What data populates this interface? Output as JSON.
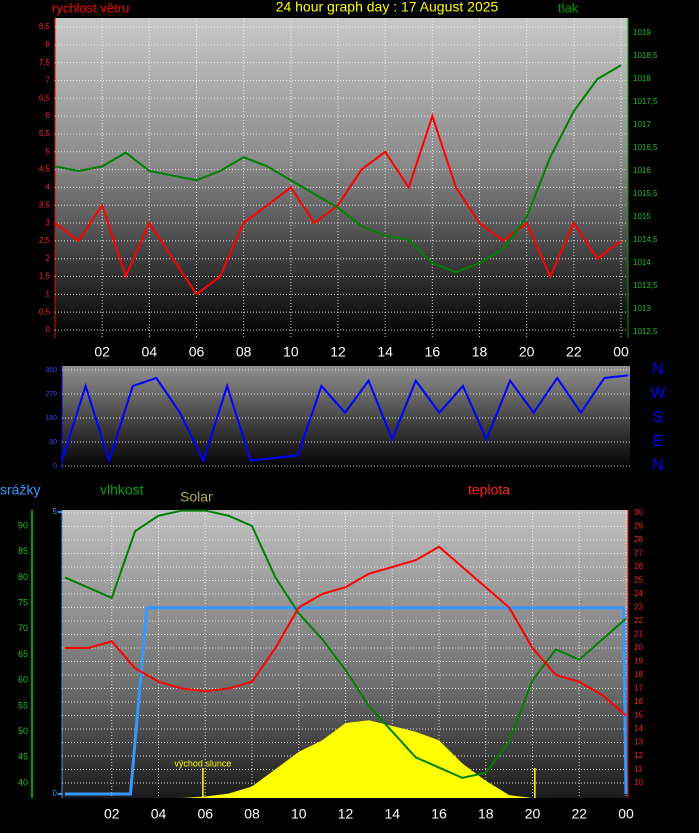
{
  "chart_data": [
    {
      "type": "line",
      "title": "24 hour graph day : 17 August 2025",
      "x": [
        0,
        1,
        2,
        3,
        4,
        5,
        6,
        7,
        8,
        9,
        10,
        11,
        12,
        13,
        14,
        15,
        16,
        17,
        18,
        19,
        20,
        21,
        22,
        23,
        24
      ],
      "xlim": [
        0,
        24
      ],
      "xticks": [
        {
          "value": 2,
          "label": "02"
        },
        {
          "value": 4,
          "label": "04"
        },
        {
          "value": 6,
          "label": "06"
        },
        {
          "value": 8,
          "label": "08"
        },
        10,
        12,
        14,
        16,
        18,
        20,
        22,
        {
          "value": 24,
          "label": "00"
        }
      ],
      "ylim": [
        0,
        8.5
      ],
      "yticks": [
        0,
        {
          "value": 0.5,
          "label": "0,5"
        },
        1,
        {
          "value": 1.5,
          "label": "1,5"
        },
        2,
        {
          "value": 2.5,
          "label": "2,5"
        },
        3,
        {
          "value": 3.5,
          "label": "3,5"
        },
        4,
        {
          "value": 4.5,
          "label": "4,5"
        },
        5,
        {
          "value": 5.5,
          "label": "5,5"
        },
        6,
        {
          "value": 6.5,
          "label": "6,5"
        },
        7,
        {
          "value": 7.5,
          "label": "7,5"
        },
        8,
        {
          "value": 8.5,
          "label": "8,5"
        }
      ],
      "y2lim": [
        1012.5,
        1019
      ],
      "y2ticks": [
        {
          "value": 1012.5,
          "label": "1012,5"
        },
        1013,
        {
          "value": 1013.5,
          "label": "1013,5"
        },
        1014,
        {
          "value": 1014.5,
          "label": "1014,5"
        },
        1015,
        {
          "value": 1015.5,
          "label": "1015,5"
        },
        1016,
        {
          "value": 1016.5,
          "label": "1016,5"
        },
        1017,
        {
          "value": 1017.5,
          "label": "1017,5"
        },
        1018,
        {
          "value": 1018.5,
          "label": "1018,5"
        },
        1019
      ],
      "grid": true,
      "series": [
        {
          "name": "rychlost větru",
          "color": "#ff0000",
          "axis": "y",
          "values": [
            3,
            2.5,
            3.5,
            1.5,
            3,
            2,
            1,
            1.5,
            3,
            3.5,
            4,
            3,
            3.5,
            4.5,
            5,
            4,
            6,
            4,
            3,
            2.5,
            3,
            1.5,
            3,
            2,
            2.5
          ]
        },
        {
          "name": "tlak",
          "color": "#008000",
          "axis": "y2",
          "values": [
            1016.1,
            1016,
            1016.1,
            1016.4,
            1016,
            1015.9,
            1015.8,
            1016,
            1016.3,
            1016.1,
            1015.8,
            1015.5,
            1015.2,
            1014.8,
            1014.6,
            1014.5,
            1014,
            1013.8,
            1014,
            1014.3,
            1015,
            1016.3,
            1017.3,
            1018,
            1018.3
          ]
        }
      ]
    },
    {
      "type": "line",
      "x": [
        0,
        1,
        2,
        3,
        4,
        5,
        6,
        7,
        8,
        9,
        10,
        11,
        12,
        13,
        14,
        15,
        16,
        17,
        18,
        19,
        20,
        21,
        22,
        23,
        24
      ],
      "xlim": [
        0,
        24
      ],
      "ylim": [
        0,
        360
      ],
      "yticks": [
        0,
        90,
        180,
        270,
        360
      ],
      "y2lim": [
        0,
        360
      ],
      "y2ticks": [
        {
          "value": 360,
          "label": "N"
        },
        {
          "value": 270,
          "label": "W"
        },
        {
          "value": 180,
          "label": "S"
        },
        {
          "value": 90,
          "label": "E"
        },
        {
          "value": 0,
          "label": "N"
        }
      ],
      "grid": true,
      "color": "#0000ff",
      "values": [
        20,
        300,
        20,
        300,
        330,
        200,
        20,
        300,
        20,
        30,
        40,
        300,
        200,
        320,
        100,
        320,
        200,
        300,
        100,
        320,
        200,
        330,
        200,
        330,
        340
      ]
    },
    {
      "type": "line",
      "x": [
        0,
        1,
        2,
        3,
        4,
        5,
        6,
        7,
        8,
        9,
        10,
        11,
        12,
        13,
        14,
        15,
        16,
        17,
        18,
        19,
        20,
        21,
        22,
        23,
        24
      ],
      "xlim": [
        0,
        24
      ],
      "xticks": [
        {
          "value": 2,
          "label": "02"
        },
        {
          "value": 4,
          "label": "04"
        },
        {
          "value": 6,
          "label": "06"
        },
        {
          "value": 8,
          "label": "08"
        },
        10,
        12,
        14,
        16,
        18,
        20,
        22,
        {
          "value": 24,
          "label": "00"
        }
      ],
      "ylim": [
        40,
        90
      ],
      "yticks": [
        40,
        45,
        50,
        55,
        60,
        65,
        70,
        75,
        80,
        85,
        90
      ],
      "y2lim": [
        10,
        30
      ],
      "y2ticks": [
        10,
        11,
        12,
        13,
        14,
        15,
        16,
        17,
        18,
        19,
        20,
        21,
        22,
        23,
        24,
        25,
        26,
        27,
        28,
        29,
        30
      ],
      "y3lim": [
        0,
        5
      ],
      "y3ticks": [
        0,
        5
      ],
      "y4lim": [
        0,
        1000
      ],
      "grid": true,
      "grid_axis": "y2",
      "series": [
        {
          "name": "srážky",
          "color": "#3399ff",
          "axis": "y3",
          "x": [
            0,
            2.8,
            3.5,
            23.9,
            24
          ],
          "values": [
            0,
            0,
            3.3,
            3.3,
            0
          ]
        },
        {
          "name": "vlhkost",
          "color": "#008000",
          "axis": "y",
          "values": [
            80,
            78,
            76,
            89,
            92,
            93,
            93,
            92,
            90,
            80,
            73,
            68,
            62,
            55,
            50,
            45,
            43,
            41,
            42,
            48,
            60,
            66,
            64,
            68,
            72
          ]
        },
        {
          "name": "Solar",
          "color": "#ffff00",
          "axis": "y4",
          "fill": true,
          "values": [
            0,
            0,
            0,
            0,
            0,
            0,
            5,
            15,
            40,
            100,
            160,
            200,
            260,
            270,
            250,
            230,
            200,
            120,
            60,
            10,
            0,
            0,
            0,
            0,
            0
          ]
        },
        {
          "name": "teplota",
          "color": "#ff0000",
          "axis": "y2",
          "values": [
            20,
            20,
            20.5,
            18.5,
            17.5,
            17,
            16.8,
            17,
            17.5,
            20,
            23,
            24,
            24.5,
            25.5,
            26,
            26.5,
            27.5,
            26,
            24.5,
            23,
            20,
            18,
            17.5,
            16.5,
            15
          ]
        }
      ],
      "annotations": [
        {
          "text": "východ slunce",
          "x": 5.9
        }
      ],
      "sun_lines": [
        5.9,
        20.1
      ]
    }
  ]
}
